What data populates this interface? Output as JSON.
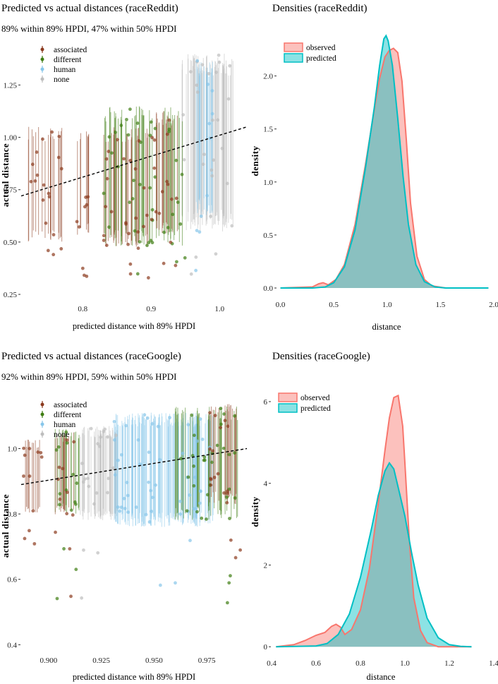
{
  "chart_data": [
    {
      "id": "scatter_reddit",
      "type": "scatter",
      "title": "Predicted vs actual distances (raceReddit)",
      "subtitle": "89% within 89% HPDI, 47% within 50% HPDI",
      "xlabel": "predicted distance with 89% HPDI",
      "ylabel": "actual distance",
      "xlim": [
        0.71,
        1.04
      ],
      "ylim": [
        0.24,
        1.42
      ],
      "xticks": [
        0.8,
        0.9,
        1.0
      ],
      "xtick_labels": [
        "0.8",
        "0.9",
        "1.0"
      ],
      "yticks": [
        0.25,
        0.5,
        0.75,
        1.0,
        1.25
      ],
      "ytick_labels": [
        "0.25",
        "0.50",
        "0.75",
        "1.00",
        "1.25"
      ],
      "legend": [
        "associated",
        "different",
        "human",
        "none"
      ],
      "series": [
        {
          "name": "associated",
          "color": "#8B3A1E",
          "bands": [
            [
              0.72,
              0.77,
              0.5,
              1.05
            ],
            [
              0.79,
              0.81,
              0.53,
              1.03
            ],
            [
              0.83,
              0.9,
              0.47,
              1.05
            ],
            [
              0.9,
              0.94,
              0.54,
              1.13
            ]
          ]
        },
        {
          "name": "different",
          "color": "#3E7D12",
          "bands": [
            [
              0.83,
              0.95,
              0.48,
              1.15
            ]
          ]
        },
        {
          "name": "human",
          "color": "#87C6EA",
          "bands": [
            [
              0.965,
              0.99,
              0.62,
              1.38
            ]
          ]
        },
        {
          "name": "none",
          "color": "#BDBDBD",
          "bands": [
            [
              0.945,
              1.02,
              0.55,
              1.4
            ]
          ]
        }
      ],
      "fit_line": {
        "x": [
          0.71,
          1.04
        ],
        "y": [
          0.72,
          1.05
        ]
      }
    },
    {
      "id": "density_reddit",
      "type": "area",
      "title": "Densities (raceReddit)",
      "xlabel": "distance",
      "ylabel": "density",
      "xlim": [
        -0.03,
        2.0
      ],
      "ylim": [
        -0.04,
        2.45
      ],
      "xticks": [
        0.0,
        0.5,
        1.0,
        1.5,
        2.0
      ],
      "xtick_labels": [
        "0.0",
        "0.5",
        "1.0",
        "1.5",
        "2.0"
      ],
      "yticks": [
        0.0,
        0.5,
        1.0,
        1.5,
        2.0
      ],
      "ytick_labels": [
        "0.0",
        "0.5",
        "1.0",
        "1.5",
        "2.0"
      ],
      "legend": [
        "observed",
        "predicted"
      ],
      "series": [
        {
          "name": "observed",
          "color": "#F8766D",
          "x": [
            0.0,
            0.3,
            0.36,
            0.4,
            0.45,
            0.52,
            0.6,
            0.7,
            0.8,
            0.87,
            0.93,
            0.98,
            1.02,
            1.06,
            1.1,
            1.14,
            1.18,
            1.22,
            1.28,
            1.35,
            1.42,
            1.55,
            1.95
          ],
          "y": [
            0.0,
            0.01,
            0.04,
            0.05,
            0.03,
            0.08,
            0.22,
            0.6,
            1.18,
            1.62,
            1.98,
            2.18,
            2.24,
            2.26,
            2.22,
            1.95,
            1.4,
            0.8,
            0.3,
            0.08,
            0.02,
            0.0,
            0.0
          ]
        },
        {
          "name": "predicted",
          "color": "#00BFC4",
          "x": [
            0.0,
            0.3,
            0.42,
            0.5,
            0.6,
            0.7,
            0.8,
            0.88,
            0.93,
            0.97,
            0.99,
            1.01,
            1.05,
            1.1,
            1.15,
            1.2,
            1.27,
            1.35,
            1.45,
            1.55,
            1.95
          ],
          "y": [
            0.0,
            0.0,
            0.01,
            0.05,
            0.2,
            0.55,
            1.15,
            1.7,
            2.1,
            2.35,
            2.38,
            2.33,
            2.1,
            1.6,
            1.05,
            0.6,
            0.22,
            0.06,
            0.01,
            0.0,
            0.0
          ]
        }
      ]
    },
    {
      "id": "scatter_google",
      "type": "scatter",
      "title": "Predicted vs actual distances (raceGoogle)",
      "subtitle": "92% within 89% HPDI, 59% within 50% HPDI",
      "xlabel": "predicted distance with 89% HPDI",
      "ylabel": "actual distance",
      "xlim": [
        0.887,
        0.994
      ],
      "ylim": [
        0.39,
        1.15
      ],
      "xticks": [
        0.9,
        0.925,
        0.95,
        0.975
      ],
      "xtick_labels": [
        "0.900",
        "0.925",
        "0.950",
        "0.975"
      ],
      "yticks": [
        0.4,
        0.6,
        0.8,
        1.0
      ],
      "ytick_labels": [
        "0.4",
        "0.6",
        "0.8",
        "1.0"
      ],
      "legend": [
        "associated",
        "different",
        "human",
        "none"
      ],
      "series": [
        {
          "name": "associated",
          "color": "#8B3A1E",
          "bands": [
            [
              0.888,
              0.897,
              0.8,
              1.03
            ],
            [
              0.903,
              0.912,
              0.79,
              1.05
            ],
            [
              0.975,
              0.991,
              0.83,
              1.14
            ]
          ]
        },
        {
          "name": "different",
          "color": "#3E7D12",
          "bands": [
            [
              0.903,
              0.915,
              0.8,
              1.06
            ],
            [
              0.96,
              0.99,
              0.78,
              1.13
            ]
          ]
        },
        {
          "name": "human",
          "color": "#87C6EA",
          "bands": [
            [
              0.931,
              0.978,
              0.76,
              1.11
            ]
          ]
        },
        {
          "name": "none",
          "color": "#BDBDBD",
          "bands": [
            [
              0.915,
              0.933,
              0.78,
              1.07
            ]
          ]
        }
      ],
      "fit_line": {
        "x": [
          0.887,
          0.994
        ],
        "y": [
          0.89,
          1.0
        ]
      }
    },
    {
      "id": "density_google",
      "type": "area",
      "title": "Densities (raceGoogle)",
      "xlabel": "distance",
      "ylabel": "density",
      "xlim": [
        0.4,
        1.4
      ],
      "ylim": [
        -0.1,
        6.5
      ],
      "xticks": [
        0.4,
        0.6,
        0.8,
        1.0,
        1.2,
        1.4
      ],
      "xtick_labels": [
        "0.4",
        "0.6",
        "0.8",
        "1.0",
        "1.2",
        "1.4"
      ],
      "yticks": [
        0,
        2,
        4,
        6
      ],
      "ytick_labels": [
        "0",
        "2",
        "4",
        "6"
      ],
      "legend": [
        "observed",
        "predicted"
      ],
      "series": [
        {
          "name": "observed",
          "color": "#F8766D",
          "x": [
            0.42,
            0.5,
            0.55,
            0.6,
            0.64,
            0.67,
            0.69,
            0.71,
            0.73,
            0.76,
            0.8,
            0.84,
            0.88,
            0.91,
            0.93,
            0.95,
            0.97,
            0.99,
            1.0,
            1.02,
            1.04,
            1.07,
            1.1,
            1.15,
            1.3
          ],
          "y": [
            0.0,
            0.05,
            0.15,
            0.28,
            0.35,
            0.5,
            0.55,
            0.48,
            0.3,
            0.42,
            0.9,
            1.9,
            3.5,
            4.8,
            5.6,
            6.1,
            6.15,
            5.4,
            4.5,
            2.6,
            1.2,
            0.4,
            0.1,
            0.0,
            0.0
          ]
        },
        {
          "name": "predicted",
          "color": "#00BFC4",
          "x": [
            0.42,
            0.6,
            0.65,
            0.7,
            0.75,
            0.8,
            0.85,
            0.88,
            0.91,
            0.93,
            0.95,
            0.97,
            1.0,
            1.03,
            1.06,
            1.1,
            1.15,
            1.2,
            1.25,
            1.3
          ],
          "y": [
            0.0,
            0.02,
            0.08,
            0.3,
            0.8,
            1.7,
            2.9,
            3.7,
            4.3,
            4.5,
            4.35,
            3.9,
            3.2,
            2.3,
            1.5,
            0.7,
            0.22,
            0.05,
            0.01,
            0.0
          ]
        }
      ]
    }
  ]
}
